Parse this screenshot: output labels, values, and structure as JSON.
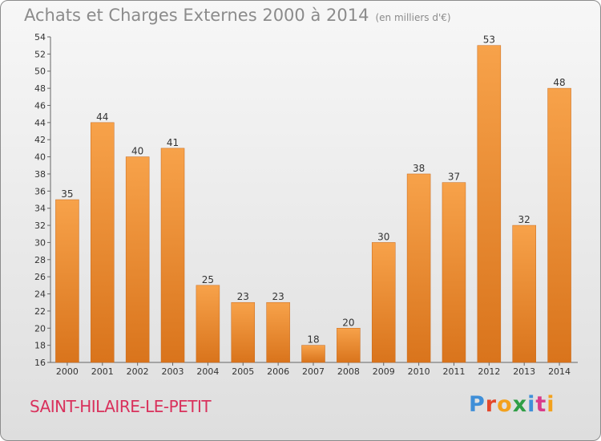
{
  "header": {
    "title": "Achats et Charges Externes 2000 à 2014",
    "subtitle": "(en milliers d'€)"
  },
  "footer": {
    "commune": "SAINT-HILAIRE-LE-PETIT",
    "logo": "Proxiti"
  },
  "colors": {
    "bar_light": "#f7a24a",
    "bar_dark": "#d9741c",
    "grid": "#cfcfcf",
    "commune_text": "#d9315c"
  },
  "chart_data": {
    "type": "bar",
    "title": "Achats et Charges Externes 2000 à 2014",
    "subtitle": "(en milliers d'€)",
    "xlabel": "",
    "ylabel": "",
    "categories": [
      "2000",
      "2001",
      "2002",
      "2003",
      "2004",
      "2005",
      "2006",
      "2007",
      "2008",
      "2009",
      "2010",
      "2011",
      "2012",
      "2013",
      "2014"
    ],
    "values": [
      35,
      44,
      40,
      41,
      25,
      23,
      23,
      18,
      20,
      30,
      38,
      37,
      53,
      32,
      48
    ],
    "ylim": [
      16,
      54
    ],
    "yticks": [
      16,
      18,
      20,
      22,
      24,
      26,
      28,
      30,
      32,
      34,
      36,
      38,
      40,
      42,
      44,
      46,
      48,
      50,
      52,
      54
    ],
    "grid": false,
    "legend": "none"
  }
}
